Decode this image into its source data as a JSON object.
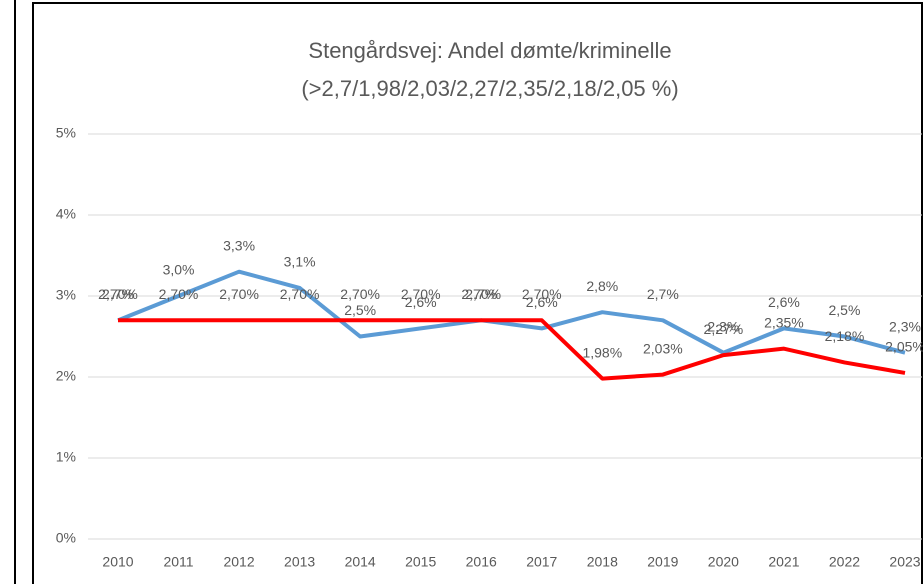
{
  "chart_data": {
    "type": "line",
    "title": "Stengårdsvej: Andel dømte/kriminelle",
    "subtitle": "(>2,7/1,98/2,03/2,27/2,35/2,18/2,05 %)",
    "categories": [
      "2010",
      "2011",
      "2012",
      "2013",
      "2014",
      "2015",
      "2016",
      "2017",
      "2018",
      "2019",
      "2020",
      "2021",
      "2022",
      "2023"
    ],
    "series": [
      {
        "color": "#5b9bd5",
        "values": [
          2.7,
          3.0,
          3.3,
          3.1,
          2.5,
          2.6,
          2.7,
          2.6,
          2.8,
          2.7,
          2.3,
          2.6,
          2.5,
          2.3
        ],
        "value_labels": [
          "2,7%",
          "3,0%",
          "3,3%",
          "3,1%",
          "2,5%",
          "2,6%",
          "2,7%",
          "2,6%",
          "2,8%",
          "2,7%",
          "2,3%",
          "2,6%",
          "2,5%",
          "2,3%"
        ]
      },
      {
        "color": "#ff0000",
        "values": [
          2.7,
          2.7,
          2.7,
          2.7,
          2.7,
          2.7,
          2.7,
          2.7,
          1.98,
          2.03,
          2.27,
          2.35,
          2.18,
          2.05
        ],
        "value_labels": [
          "2,70%",
          "2,70%",
          "2,70%",
          "2,70%",
          "2,70%",
          "2,70%",
          "2,70%",
          "2,70%",
          "1,98%",
          "2,03%",
          "2,27%",
          "2,35%",
          "2,18%",
          "2,05%"
        ]
      }
    ],
    "ylim": [
      0,
      5
    ],
    "yticks": [
      {
        "value": 0,
        "label": "0%"
      },
      {
        "value": 1,
        "label": "1%"
      },
      {
        "value": 2,
        "label": "2%"
      },
      {
        "value": 3,
        "label": "3%"
      },
      {
        "value": 4,
        "label": "4%"
      },
      {
        "value": 5,
        "label": "5%"
      }
    ],
    "grid": true
  }
}
